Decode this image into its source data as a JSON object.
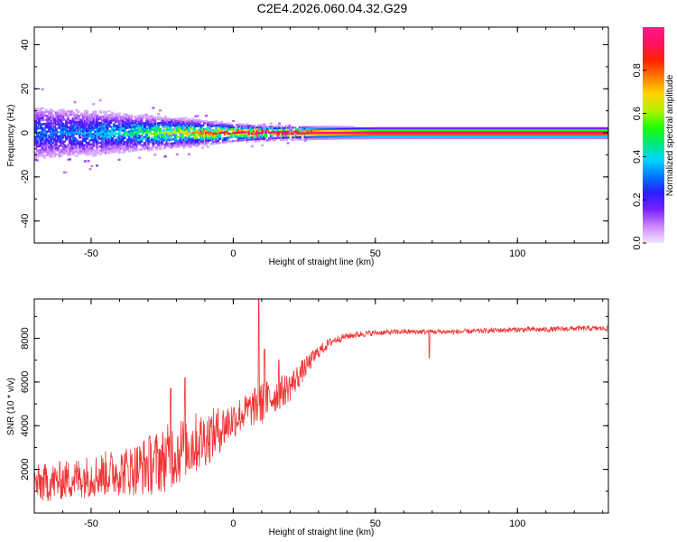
{
  "title": "C2E4.2026.060.04.32.G29",
  "chart_data": [
    {
      "type": "heatmap",
      "xlabel": "Height of straight line (km)",
      "ylabel": "Frequency (Hz)",
      "xlim": [
        -70,
        132
      ],
      "ylim": [
        -50,
        48
      ],
      "xticks": [
        -50,
        0,
        50,
        100
      ],
      "yticks": [
        -40,
        -20,
        0,
        20,
        40
      ],
      "colorbar": {
        "label": "Normalized spectral amplitude",
        "range": [
          0,
          1
        ],
        "ticks": [
          0.0,
          0.2,
          0.4,
          0.6,
          0.8
        ],
        "colors": [
          "#f2e6ff",
          "#cc88ff",
          "#7a22ff",
          "#2b1cff",
          "#0077ff",
          "#00d5ff",
          "#00e87a",
          "#22ff00",
          "#b8f000",
          "#ffd400",
          "#ff7a00",
          "#ff2200",
          "#ff1060",
          "#ff1a8a"
        ]
      },
      "profile": {
        "x": [
          -70,
          -60,
          -50,
          -40,
          -30,
          -20,
          -10,
          0,
          10,
          20,
          30,
          50,
          75,
          100,
          132
        ],
        "spread_hz": [
          6,
          5.5,
          5,
          4.2,
          3.5,
          3,
          2.4,
          1.8,
          1.5,
          1.3,
          1.2,
          1.1,
          1.1,
          1.1,
          1.1
        ],
        "peak_amplitude": [
          0.3,
          0.32,
          0.35,
          0.42,
          0.55,
          0.65,
          0.8,
          0.9,
          0.95,
          0.95,
          0.95,
          0.95,
          0.95,
          0.95,
          0.95
        ]
      }
    },
    {
      "type": "line",
      "xlabel": "Height of straight line (km)",
      "ylabel": "SNR (10 * v/v)",
      "xlim": [
        -70,
        132
      ],
      "ylim": [
        0,
        9800
      ],
      "xticks": [
        -50,
        0,
        50,
        100
      ],
      "yticks": [
        2000,
        4000,
        6000,
        8000
      ],
      "series": [
        {
          "color": "#ee3333",
          "x": [
            -70,
            -65,
            -60,
            -55,
            -50,
            -45,
            -40,
            -35,
            -30,
            -25,
            -20,
            -15,
            -10,
            -5,
            0,
            5,
            10,
            15,
            20,
            25,
            30,
            35,
            40,
            45,
            50,
            60,
            70,
            80,
            90,
            100,
            110,
            120,
            132
          ],
          "y": [
            1300,
            1400,
            1500,
            1600,
            1700,
            1800,
            1900,
            2000,
            2200,
            2400,
            2800,
            3100,
            3400,
            3800,
            4300,
            4700,
            5000,
            5400,
            5800,
            6600,
            7400,
            7900,
            8100,
            8200,
            8250,
            8300,
            8300,
            8300,
            8350,
            8400,
            8400,
            8450,
            8450
          ],
          "noise": [
            900,
            900,
            900,
            950,
            1000,
            1050,
            1100,
            1200,
            1400,
            1500,
            1600,
            1500,
            1300,
            1100,
            900,
            800,
            1000,
            800,
            700,
            500,
            300,
            200,
            150,
            150,
            120,
            120,
            120,
            120,
            120,
            120,
            120,
            120,
            120
          ]
        }
      ],
      "spikes": [
        {
          "x": -22,
          "y": 5700
        },
        {
          "x": -17,
          "y": 6200
        },
        {
          "x": 9,
          "y": 9800
        },
        {
          "x": 11,
          "y": 7500
        },
        {
          "x": 16,
          "y": 7000
        },
        {
          "x": 69,
          "y": 7100
        }
      ]
    }
  ]
}
